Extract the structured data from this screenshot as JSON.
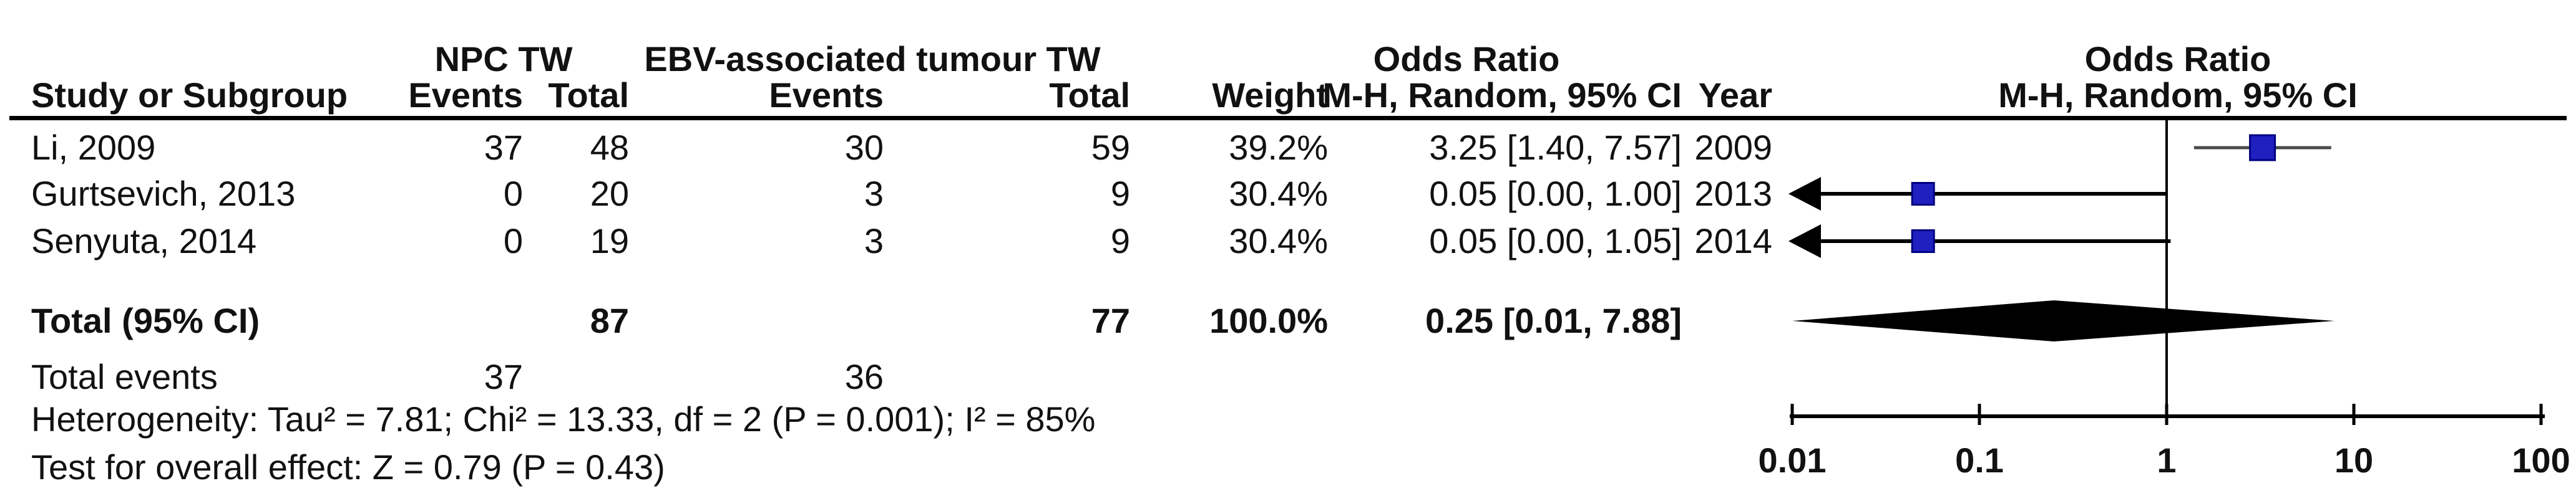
{
  "figure": {
    "group_headers": {
      "npc": "NPC TW",
      "ebv": "EBV-associated tumour TW",
      "odds_ratio_left": "Odds Ratio",
      "odds_ratio_right": "Odds Ratio"
    },
    "column_headers": {
      "study": "Study or Subgroup",
      "npc_events": "Events",
      "npc_total": "Total",
      "ebv_events": "Events",
      "ebv_total": "Total",
      "weight": "Weight",
      "mh_ci": "M-H, Random, 95% CI",
      "year": "Year",
      "mh_ci_right": "M-H, Random, 95% CI"
    },
    "summary": {
      "total_label": "Total (95% CI)",
      "total_events_label": "Total events",
      "heterogeneity": "Heterogeneity: Tau² = 7.81; Chi² = 13.33, df = 2 (P = 0.001); I² = 85%",
      "overall_effect": "Test for overall effect: Z = 0.79 (P = 0.43)"
    }
  },
  "chart_data": {
    "type": "forest",
    "effect_label": "Odds Ratio, M-H, Random, 95% CI",
    "comparison": {
      "group1": "NPC TW",
      "group2": "EBV-associated tumour TW"
    },
    "x_axis": {
      "scale": "log",
      "ticks": [
        0.01,
        0.1,
        1,
        10,
        100
      ],
      "range": [
        0.01,
        100
      ]
    },
    "studies": [
      {
        "label": "Li, 2009",
        "year": 2009,
        "npc_events": 37,
        "npc_total": 48,
        "ebv_events": 30,
        "ebv_total": 59,
        "weight": 39.2,
        "weight_text": "39.2%",
        "or": 3.25,
        "ci_low": 1.4,
        "ci_high": 7.57,
        "or_ci_text": "3.25 [1.40, 7.57]",
        "arrow_low": false
      },
      {
        "label": "Gurtsevich, 2013",
        "year": 2013,
        "npc_events": 0,
        "npc_total": 20,
        "ebv_events": 3,
        "ebv_total": 9,
        "weight": 30.4,
        "weight_text": "30.4%",
        "or": 0.05,
        "ci_low": 0.0,
        "ci_high": 1.0,
        "or_ci_text": "0.05 [0.00, 1.00]",
        "arrow_low": true
      },
      {
        "label": "Senyuta, 2014",
        "year": 2014,
        "npc_events": 0,
        "npc_total": 19,
        "ebv_events": 3,
        "ebv_total": 9,
        "weight": 30.4,
        "weight_text": "30.4%",
        "or": 0.05,
        "ci_low": 0.0,
        "ci_high": 1.05,
        "or_ci_text": "0.05 [0.00, 1.05]",
        "arrow_low": true
      }
    ],
    "total": {
      "npc_total": 87,
      "ebv_total": 77,
      "weight_text": "100.0%",
      "or": 0.25,
      "ci_low": 0.01,
      "ci_high": 7.88,
      "or_ci_text": "0.25 [0.01, 7.88]"
    },
    "total_events": {
      "npc": 37,
      "ebv": 36
    },
    "colors": {
      "marker_fill": "#2020c0",
      "marker_edge": "#000080",
      "ci_line_gray": "#4a4a4a",
      "line_black": "#000000"
    }
  }
}
